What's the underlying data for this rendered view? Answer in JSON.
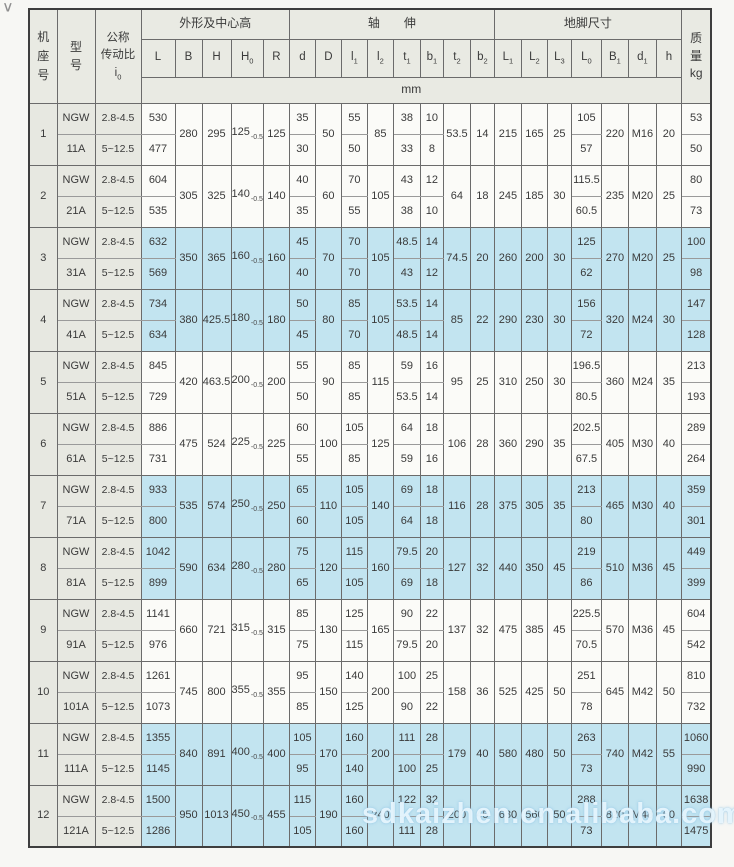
{
  "page": {
    "corner_mark": "∨",
    "watermark": "sdkaizhen.cn.alibaba.com"
  },
  "colors": {
    "highlight_blue": "#c2e4f0",
    "header_gray": "#e9eae3",
    "left_col_gray": "#e7e8e1",
    "row_white": "#fbfbf8",
    "grid_line": "#6b6b6b"
  },
  "header": {
    "frame_label": "机座号",
    "model_label": "型号",
    "ratio_label_1": "公称",
    "ratio_label_2": "传动比",
    "ratio_i": "i",
    "ratio_i_sub": "0",
    "group_outline": "外形及中心高",
    "group_shaft": "轴　　伸",
    "group_foot": "地脚尺寸",
    "mass_label_1": "质",
    "mass_label_2": "量",
    "mass_label_3": "kg",
    "unit_label": "mm",
    "columns": [
      {
        "id": "L",
        "main": "L",
        "sub": ""
      },
      {
        "id": "B",
        "main": "B",
        "sub": ""
      },
      {
        "id": "H",
        "main": "H",
        "sub": ""
      },
      {
        "id": "H0",
        "main": "H",
        "sub": "0"
      },
      {
        "id": "R",
        "main": "R",
        "sub": ""
      },
      {
        "id": "d",
        "main": "d",
        "sub": ""
      },
      {
        "id": "D",
        "main": "D",
        "sub": ""
      },
      {
        "id": "l1",
        "main": "l",
        "sub": "1"
      },
      {
        "id": "l2",
        "main": "l",
        "sub": "2"
      },
      {
        "id": "t1",
        "main": "t",
        "sub": "1"
      },
      {
        "id": "b1",
        "main": "b",
        "sub": "1"
      },
      {
        "id": "t2",
        "main": "t",
        "sub": "2"
      },
      {
        "id": "b2",
        "main": "b",
        "sub": "2"
      },
      {
        "id": "L1",
        "main": "L",
        "sub": "1"
      },
      {
        "id": "L2",
        "main": "L",
        "sub": "2"
      },
      {
        "id": "L3",
        "main": "L",
        "sub": "3"
      },
      {
        "id": "L0",
        "main": "L",
        "sub": "0"
      },
      {
        "id": "B1",
        "main": "B",
        "sub": "1"
      },
      {
        "id": "d1",
        "main": "d",
        "sub": "1"
      },
      {
        "id": "h",
        "main": "h",
        "sub": ""
      }
    ]
  },
  "h0_tolerance": "-0.5",
  "rows": [
    {
      "no": "1",
      "model_line1": "NGW",
      "model_line2": "11A",
      "ratio_high": "2.8-4.5",
      "ratio_low": "5~12.5",
      "L": [
        "530",
        "477"
      ],
      "B": "280",
      "H": "295",
      "H0": "125",
      "R": "125",
      "d": [
        "35",
        "30"
      ],
      "D": "50",
      "l1": [
        "55",
        "50"
      ],
      "l2": "85",
      "t1": [
        "38",
        "33"
      ],
      "b1": [
        "10",
        "8"
      ],
      "t2": "53.5",
      "b2": "14",
      "L1": "215",
      "L2": "165",
      "L3": "25",
      "L0": [
        "105",
        "57"
      ],
      "B1": "220",
      "d1": "M16",
      "h": "20",
      "mass": [
        "53",
        "50"
      ],
      "highlight": false
    },
    {
      "no": "2",
      "model_line1": "NGW",
      "model_line2": "21A",
      "ratio_high": "2.8-4.5",
      "ratio_low": "5~12.5",
      "L": [
        "604",
        "535"
      ],
      "B": "305",
      "H": "325",
      "H0": "140",
      "R": "140",
      "d": [
        "40",
        "35"
      ],
      "D": "60",
      "l1": [
        "70",
        "55"
      ],
      "l2": "105",
      "t1": [
        "43",
        "38"
      ],
      "b1": [
        "12",
        "10"
      ],
      "t2": "64",
      "b2": "18",
      "L1": "245",
      "L2": "185",
      "L3": "30",
      "L0": [
        "115.5",
        "60.5"
      ],
      "B1": "235",
      "d1": "M20",
      "h": "25",
      "mass": [
        "80",
        "73"
      ],
      "highlight": false
    },
    {
      "no": "3",
      "model_line1": "NGW",
      "model_line2": "31A",
      "ratio_high": "2.8-4.5",
      "ratio_low": "5~12.5",
      "L": [
        "632",
        "569"
      ],
      "B": "350",
      "H": "365",
      "H0": "160",
      "R": "160",
      "d": [
        "45",
        "40"
      ],
      "D": "70",
      "l1": [
        "70",
        "70"
      ],
      "l2": "105",
      "t1": [
        "48.5",
        "43"
      ],
      "b1": [
        "14",
        "12"
      ],
      "t2": "74.5",
      "b2": "20",
      "L1": "260",
      "L2": "200",
      "L3": "30",
      "L0": [
        "125",
        "62"
      ],
      "B1": "270",
      "d1": "M20",
      "h": "25",
      "mass": [
        "100",
        "98"
      ],
      "highlight": true
    },
    {
      "no": "4",
      "model_line1": "NGW",
      "model_line2": "41A",
      "ratio_high": "2.8-4.5",
      "ratio_low": "5~12.5",
      "L": [
        "734",
        "634"
      ],
      "B": "380",
      "H": "425.5",
      "H0": "180",
      "R": "180",
      "d": [
        "50",
        "45"
      ],
      "D": "80",
      "l1": [
        "85",
        "70"
      ],
      "l2": "105",
      "t1": [
        "53.5",
        "48.5"
      ],
      "b1": [
        "14",
        "14"
      ],
      "t2": "85",
      "b2": "22",
      "L1": "290",
      "L2": "230",
      "L3": "30",
      "L0": [
        "156",
        "72"
      ],
      "B1": "320",
      "d1": "M24",
      "h": "30",
      "mass": [
        "147",
        "128"
      ],
      "highlight": true
    },
    {
      "no": "5",
      "model_line1": "NGW",
      "model_line2": "51A",
      "ratio_high": "2.8-4.5",
      "ratio_low": "5~12.5",
      "L": [
        "845",
        "729"
      ],
      "B": "420",
      "H": "463.5",
      "H0": "200",
      "R": "200",
      "d": [
        "55",
        "50"
      ],
      "D": "90",
      "l1": [
        "85",
        "85"
      ],
      "l2": "115",
      "t1": [
        "59",
        "53.5"
      ],
      "b1": [
        "16",
        "14"
      ],
      "t2": "95",
      "b2": "25",
      "L1": "310",
      "L2": "250",
      "L3": "30",
      "L0": [
        "196.5",
        "80.5"
      ],
      "B1": "360",
      "d1": "M24",
      "h": "35",
      "mass": [
        "213",
        "193"
      ],
      "highlight": false
    },
    {
      "no": "6",
      "model_line1": "NGW",
      "model_line2": "61A",
      "ratio_high": "2.8-4.5",
      "ratio_low": "5~12.5",
      "L": [
        "886",
        "731"
      ],
      "B": "475",
      "H": "524",
      "H0": "225",
      "R": "225",
      "d": [
        "60",
        "55"
      ],
      "D": "100",
      "l1": [
        "105",
        "85"
      ],
      "l2": "125",
      "t1": [
        "64",
        "59"
      ],
      "b1": [
        "18",
        "16"
      ],
      "t2": "106",
      "b2": "28",
      "L1": "360",
      "L2": "290",
      "L3": "35",
      "L0": [
        "202.5",
        "67.5"
      ],
      "B1": "405",
      "d1": "M30",
      "h": "40",
      "mass": [
        "289",
        "264"
      ],
      "highlight": false
    },
    {
      "no": "7",
      "model_line1": "NGW",
      "model_line2": "71A",
      "ratio_high": "2.8-4.5",
      "ratio_low": "5~12.5",
      "L": [
        "933",
        "800"
      ],
      "B": "535",
      "H": "574",
      "H0": "250",
      "R": "250",
      "d": [
        "65",
        "60"
      ],
      "D": "110",
      "l1": [
        "105",
        "105"
      ],
      "l2": "140",
      "t1": [
        "69",
        "64"
      ],
      "b1": [
        "18",
        "18"
      ],
      "t2": "116",
      "b2": "28",
      "L1": "375",
      "L2": "305",
      "L3": "35",
      "L0": [
        "213",
        "80"
      ],
      "B1": "465",
      "d1": "M30",
      "h": "40",
      "mass": [
        "359",
        "301"
      ],
      "highlight": true
    },
    {
      "no": "8",
      "model_line1": "NGW",
      "model_line2": "81A",
      "ratio_high": "2.8-4.5",
      "ratio_low": "5~12.5",
      "L": [
        "1042",
        "899"
      ],
      "B": "590",
      "H": "634",
      "H0": "280",
      "R": "280",
      "d": [
        "75",
        "65"
      ],
      "D": "120",
      "l1": [
        "115",
        "105"
      ],
      "l2": "160",
      "t1": [
        "79.5",
        "69"
      ],
      "b1": [
        "20",
        "18"
      ],
      "t2": "127",
      "b2": "32",
      "L1": "440",
      "L2": "350",
      "L3": "45",
      "L0": [
        "219",
        "86"
      ],
      "B1": "510",
      "d1": "M36",
      "h": "45",
      "mass": [
        "449",
        "399"
      ],
      "highlight": true
    },
    {
      "no": "9",
      "model_line1": "NGW",
      "model_line2": "91A",
      "ratio_high": "2.8-4.5",
      "ratio_low": "5~12.5",
      "L": [
        "1141",
        "976"
      ],
      "B": "660",
      "H": "721",
      "H0": "315",
      "R": "315",
      "d": [
        "85",
        "75"
      ],
      "D": "130",
      "l1": [
        "125",
        "115"
      ],
      "l2": "165",
      "t1": [
        "90",
        "79.5"
      ],
      "b1": [
        "22",
        "20"
      ],
      "t2": "137",
      "b2": "32",
      "L1": "475",
      "L2": "385",
      "L3": "45",
      "L0": [
        "225.5",
        "70.5"
      ],
      "B1": "570",
      "d1": "M36",
      "h": "45",
      "mass": [
        "604",
        "542"
      ],
      "highlight": false
    },
    {
      "no": "10",
      "model_line1": "NGW",
      "model_line2": "101A",
      "ratio_high": "2.8-4.5",
      "ratio_low": "5~12.5",
      "L": [
        "1261",
        "1073"
      ],
      "B": "745",
      "H": "800",
      "H0": "355",
      "R": "355",
      "d": [
        "95",
        "85"
      ],
      "D": "150",
      "l1": [
        "140",
        "125"
      ],
      "l2": "200",
      "t1": [
        "100",
        "90"
      ],
      "b1": [
        "25",
        "22"
      ],
      "t2": "158",
      "b2": "36",
      "L1": "525",
      "L2": "425",
      "L3": "50",
      "L0": [
        "251",
        "78"
      ],
      "B1": "645",
      "d1": "M42",
      "h": "50",
      "mass": [
        "810",
        "732"
      ],
      "highlight": false
    },
    {
      "no": "11",
      "model_line1": "NGW",
      "model_line2": "111A",
      "ratio_high": "2.8-4.5",
      "ratio_low": "5~12.5",
      "L": [
        "1355",
        "1145"
      ],
      "B": "840",
      "H": "891",
      "H0": "400",
      "R": "400",
      "d": [
        "105",
        "95"
      ],
      "D": "170",
      "l1": [
        "160",
        "140"
      ],
      "l2": "200",
      "t1": [
        "111",
        "100"
      ],
      "b1": [
        "28",
        "25"
      ],
      "t2": "179",
      "b2": "40",
      "L1": "580",
      "L2": "480",
      "L3": "50",
      "L0": [
        "263",
        "73"
      ],
      "B1": "740",
      "d1": "M42",
      "h": "55",
      "mass": [
        "1060",
        "990"
      ],
      "highlight": true
    },
    {
      "no": "12",
      "model_line1": "NGW",
      "model_line2": "121A",
      "ratio_high": "2.8-4.5",
      "ratio_low": "5~12.5",
      "L": [
        "1500",
        "1286"
      ],
      "B": "950",
      "H": "1013",
      "H0": "450",
      "R": "455",
      "d": [
        "115",
        "105"
      ],
      "D": "190",
      "l1": [
        "160",
        "160"
      ],
      "l2": "240",
      "t1": [
        "122",
        "111"
      ],
      "b1": [
        "32",
        "28"
      ],
      "t2": "200",
      "b2": "45",
      "L1": "680",
      "L2": "560",
      "L3": "50",
      "L0": [
        "288",
        "73"
      ],
      "B1": "820",
      "d1": "M48",
      "h": "60",
      "mass": [
        "1638",
        "1475"
      ],
      "highlight": true
    }
  ]
}
